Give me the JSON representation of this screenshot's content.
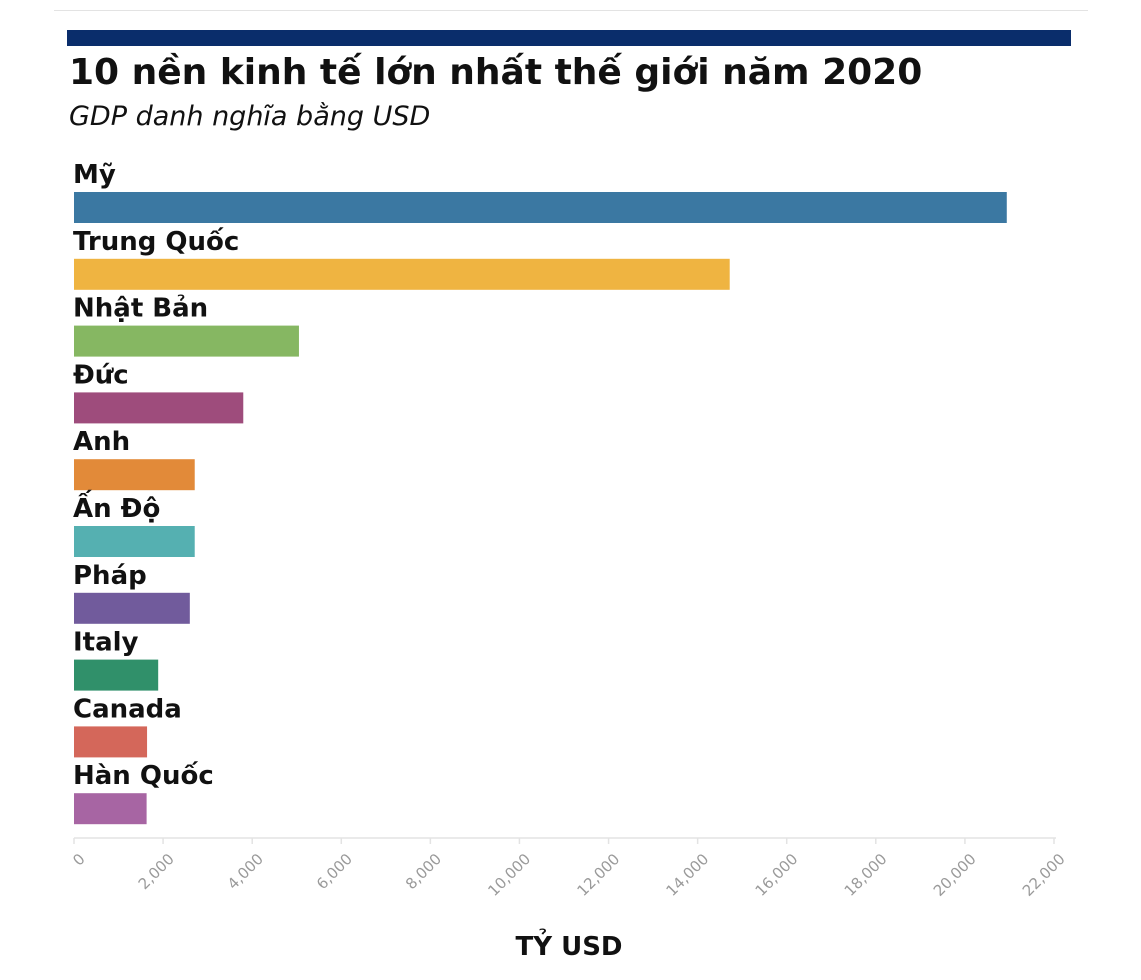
{
  "colors": {
    "banner": "#0a2d6b",
    "axis": "#e3e3e3",
    "tick_text": "#9a9a9a"
  },
  "chart_data": {
    "type": "bar",
    "orientation": "horizontal",
    "title": "10 nền kinh tế lớn nhất thế giới năm 2020",
    "subtitle": "GDP danh nghĩa bằng USD",
    "xlabel": "TỶ USD",
    "ylabel": "",
    "xlim": [
      0,
      22000
    ],
    "xticks": [
      "0",
      "2,000",
      "4,000",
      "6,000",
      "8,000",
      "10,000",
      "12,000",
      "14,000",
      "16,000",
      "18,000",
      "20,000",
      "22,000"
    ],
    "grid": false,
    "categories": [
      "Mỹ",
      "Trung Quốc",
      "Nhật Bản",
      "Đức",
      "Anh",
      "Ấn Độ",
      "Pháp",
      "Italy",
      "Canada",
      "Hàn Quốc"
    ],
    "values": [
      20940,
      14720,
      5050,
      3800,
      2710,
      2710,
      2600,
      1890,
      1640,
      1630
    ],
    "bar_colors": [
      "#3b78a2",
      "#efb441",
      "#86b762",
      "#9e4c7c",
      "#e28a39",
      "#55b0b1",
      "#715b9c",
      "#30906a",
      "#d4675a",
      "#a765a3"
    ]
  }
}
